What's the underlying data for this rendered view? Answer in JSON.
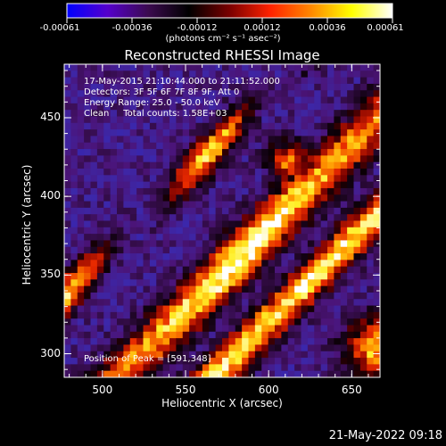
{
  "colorbar": {
    "tick_labels": [
      "-0.00061",
      "-0.00036",
      "-0.00012",
      "0.00012",
      "0.00036",
      "0.00061"
    ],
    "units": "(photons cm⁻² s⁻¹ asec⁻²)",
    "range": [
      -0.00061,
      0.00061
    ],
    "colors": [
      "#0000ff",
      "#5500cc",
      "#3b0b4f",
      "#000000",
      "#7a0000",
      "#ff2200",
      "#ff8800",
      "#ffff00",
      "#ffffff"
    ]
  },
  "chart_data": {
    "type": "heatmap",
    "title": "Reconstructed RHESSI Image",
    "xlabel": "Heliocentric X (arcsec)",
    "ylabel": "Heliocentric Y (arcsec)",
    "xlim": [
      477,
      667
    ],
    "ylim": [
      285,
      484
    ],
    "x_ticks": [
      500,
      550,
      600,
      650
    ],
    "y_ticks": [
      300,
      350,
      400,
      450
    ],
    "x_tick_labels": [
      "500",
      "550",
      "600",
      "650"
    ],
    "y_tick_labels": [
      "300",
      "350",
      "400",
      "450"
    ],
    "peak": [
      591,
      348
    ],
    "annotations": {
      "time": "17-May-2015 21:10:44.000 to 21:11:52.000",
      "detectors": "Detectors: 3F 5F 6F 7F 8F 9F, Att 0",
      "energy": "Energy Range: 25.0 - 50.0 keV",
      "clean": "Clean     Total counts: 1.58E+03",
      "peak_text": "Position of Peak = [591,348]"
    }
  },
  "footer": {
    "date": "21-May-2022 09:18"
  }
}
